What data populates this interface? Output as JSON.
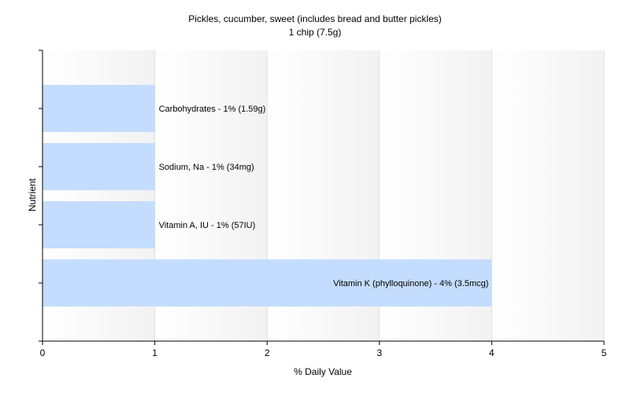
{
  "chart_data": {
    "type": "bar",
    "orientation": "horizontal",
    "title": "Pickles, cucumber, sweet (includes bread and butter pickles)",
    "subtitle": "1 chip (7.5g)",
    "xlabel": "% Daily Value",
    "ylabel": "Nutrient",
    "xlim": [
      0,
      5
    ],
    "xticks": [
      "0",
      "1",
      "2",
      "3",
      "4",
      "5"
    ],
    "grid": true,
    "categories": [
      "Carbohydrates",
      "Sodium, Na",
      "Vitamin A, IU",
      "Vitamin K (phylloquinone)"
    ],
    "values": [
      1,
      1,
      1,
      4
    ],
    "data_labels": [
      "Carbohydrates - 1% (1.59g)",
      "Sodium, Na - 1% (34mg)",
      "Vitamin A, IU - 1% (57IU)",
      "Vitamin K (phylloquinone) - 4% (3.5mcg)"
    ],
    "colors": {
      "bar": "#c4ddff",
      "grid": "#e0e0e0",
      "axis": "#000000",
      "band_light": "#ffffff",
      "band_dark": "#f2f2f2"
    }
  }
}
